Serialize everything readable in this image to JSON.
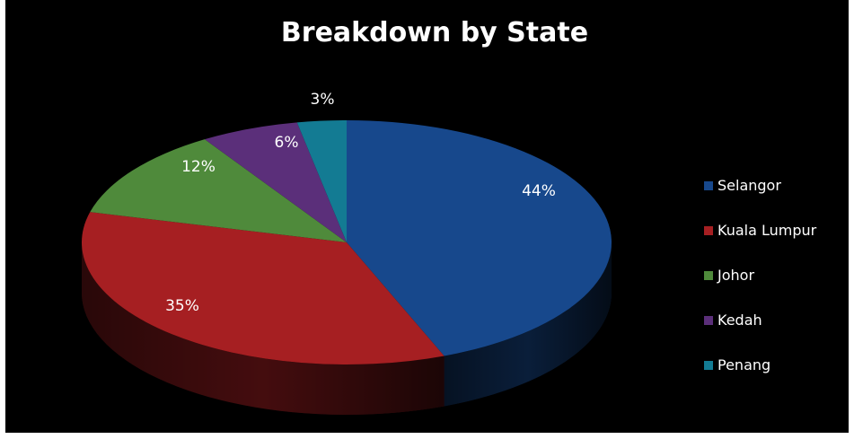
{
  "chart_data": {
    "type": "pie",
    "title": "Breakdown by State",
    "categories": [
      "Selangor",
      "Kuala Lumpur",
      "Johor",
      "Kedah",
      "Penang"
    ],
    "values": [
      44,
      35,
      12,
      6,
      3
    ],
    "value_labels": [
      "44%",
      "35%",
      "12%",
      "6%",
      "3%"
    ],
    "colors": [
      "#17488c",
      "#a61f22",
      "#4f8a3b",
      "#5b2f7a",
      "#137b93"
    ],
    "style": "3d",
    "legend_position": "right"
  }
}
